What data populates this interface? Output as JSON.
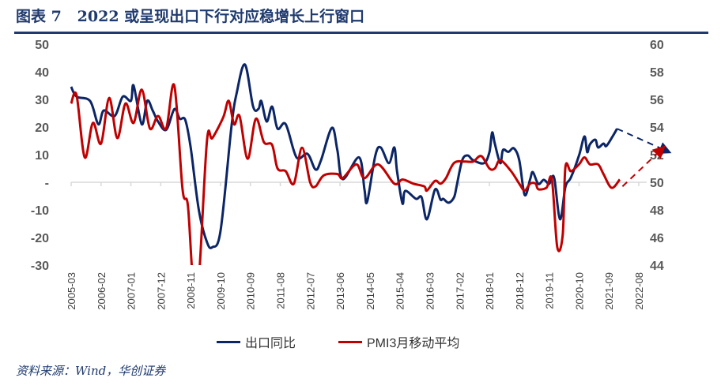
{
  "title": "图表 7   2022 或呈现出口下行对应稳增长上行窗口",
  "source": "资料来源：Wind，华创证券",
  "colors": {
    "export": "#0b2566",
    "pmi": "#c00000",
    "title": "#1f3a6e",
    "axis": "#d9d9d9"
  },
  "chart_data": {
    "type": "line",
    "title": "",
    "x_tick_labels": [
      "2005-03",
      "2006-02",
      "2007-01",
      "2007-12",
      "2008-11",
      "2009-10",
      "2010-09",
      "2011-08",
      "2012-07",
      "2013-06",
      "2014-05",
      "2015-04",
      "2016-03",
      "2017-02",
      "2018-01",
      "2018-12",
      "2019-11",
      "2020-10",
      "2021-09",
      "2022-08"
    ],
    "y_left": {
      "ticks": [
        "50",
        "40",
        "30",
        "20",
        "10",
        "-",
        "-10",
        "-20",
        "-30"
      ],
      "range": [
        -30,
        50
      ]
    },
    "y_right": {
      "ticks": [
        "60",
        "58",
        "56",
        "54",
        "52",
        "50",
        "48",
        "46",
        "44"
      ],
      "range": [
        44,
        60
      ]
    },
    "grid": false,
    "legend_position": "bottom",
    "series": [
      {
        "name": "出口同比",
        "axis": "left",
        "color": "#0b2566",
        "points": [
          [
            "2005-03",
            34.6
          ],
          [
            "2005-05",
            31
          ],
          [
            "2005-10",
            29.4
          ],
          [
            "2006-01",
            21
          ],
          [
            "2006-03",
            26
          ],
          [
            "2006-07",
            24
          ],
          [
            "2006-10",
            31
          ],
          [
            "2007-01",
            29.5
          ],
          [
            "2007-02",
            35
          ],
          [
            "2007-05",
            21
          ],
          [
            "2007-07",
            29.5
          ],
          [
            "2007-09",
            26
          ],
          [
            "2007-11",
            22
          ],
          [
            "2008-02",
            19
          ],
          [
            "2008-05",
            26.5
          ],
          [
            "2008-07",
            23
          ],
          [
            "2008-09",
            22.6
          ],
          [
            "2008-11",
            12.6
          ],
          [
            "2009-02",
            -10
          ],
          [
            "2009-05",
            -21.7
          ],
          [
            "2009-07",
            -23.5
          ],
          [
            "2009-10",
            -17.7
          ],
          [
            "2010-02",
            20
          ],
          [
            "2010-04",
            32.6
          ],
          [
            "2010-07",
            42.6
          ],
          [
            "2010-10",
            27.4
          ],
          [
            "2010-12",
            26.6
          ],
          [
            "2011-01",
            29.4
          ],
          [
            "2011-03",
            22
          ],
          [
            "2011-05",
            27.4
          ],
          [
            "2011-07",
            19.4
          ],
          [
            "2011-10",
            21
          ],
          [
            "2012-02",
            9
          ],
          [
            "2012-06",
            10.3
          ],
          [
            "2012-09",
            4.6
          ],
          [
            "2012-11",
            8
          ],
          [
            "2013-03",
            19.7
          ],
          [
            "2013-05",
            11.7
          ],
          [
            "2013-07",
            1.1
          ],
          [
            "2014-01",
            9
          ],
          [
            "2014-03",
            -2.6
          ],
          [
            "2014-04",
            -7
          ],
          [
            "2014-07",
            9.7
          ],
          [
            "2014-09",
            12.6
          ],
          [
            "2014-12",
            6.9
          ],
          [
            "2015-02",
            12.6
          ],
          [
            "2015-03",
            4
          ],
          [
            "2015-05",
            -7.7
          ],
          [
            "2015-06",
            -3.1
          ],
          [
            "2015-10",
            -6
          ],
          [
            "2015-12",
            -5.4
          ],
          [
            "2016-02",
            -13.4
          ],
          [
            "2016-05",
            -2.6
          ],
          [
            "2016-07",
            -6.3
          ],
          [
            "2016-08",
            -6
          ],
          [
            "2016-10",
            -7.4
          ],
          [
            "2016-12",
            -5.4
          ],
          [
            "2017-01",
            -1.1
          ],
          [
            "2017-03",
            8
          ],
          [
            "2017-05",
            9.7
          ],
          [
            "2017-07",
            8
          ],
          [
            "2017-11",
            6.9
          ],
          [
            "2018-01",
            10.9
          ],
          [
            "2018-02",
            18
          ],
          [
            "2018-03",
            14
          ],
          [
            "2018-05",
            6.9
          ],
          [
            "2018-06",
            11.7
          ],
          [
            "2018-08",
            11
          ],
          [
            "2018-10",
            12.3
          ],
          [
            "2018-12",
            8
          ],
          [
            "2019-02",
            -4.6
          ],
          [
            "2019-04",
            1.1
          ],
          [
            "2019-05",
            3.7
          ],
          [
            "2019-07",
            -0.6
          ],
          [
            "2019-09",
            0.9
          ],
          [
            "2019-11",
            -0.6
          ],
          [
            "2019-12",
            1.7
          ],
          [
            "2020-01",
            0.9
          ],
          [
            "2020-03",
            -13.4
          ],
          [
            "2020-05",
            -1.7
          ],
          [
            "2020-07",
            1.7
          ],
          [
            "2020-10",
            9.7
          ],
          [
            "2020-12",
            16.6
          ],
          [
            "2021-01",
            10.9
          ],
          [
            "2021-02",
            13.7
          ],
          [
            "2021-04",
            15.4
          ],
          [
            "2021-05",
            12.6
          ],
          [
            "2021-07",
            14
          ],
          [
            "2021-08",
            13.1
          ],
          [
            "2021-10",
            16
          ],
          [
            "2021-12",
            19.4
          ]
        ],
        "projection": [
          [
            "2021-12",
            19.4
          ],
          [
            "2023-07",
            11
          ]
        ]
      },
      {
        "name": "PMI3月移动平均",
        "axis": "right",
        "color": "#c00000",
        "points": [
          [
            "2005-03",
            55.7
          ],
          [
            "2005-05",
            56.3
          ],
          [
            "2005-08",
            51.8
          ],
          [
            "2005-11",
            54.3
          ],
          [
            "2006-02",
            52.8
          ],
          [
            "2006-05",
            56.1
          ],
          [
            "2006-08",
            53.2
          ],
          [
            "2006-11",
            55.7
          ],
          [
            "2007-02",
            54.3
          ],
          [
            "2007-05",
            56.7
          ],
          [
            "2007-08",
            53.9
          ],
          [
            "2007-11",
            54.8
          ],
          [
            "2008-02",
            53.9
          ],
          [
            "2008-05",
            57
          ],
          [
            "2008-08",
            49.5
          ],
          [
            "2008-10",
            48.3
          ],
          [
            "2008-12",
            42.5
          ],
          [
            "2009-02",
            43
          ],
          [
            "2009-05",
            53
          ],
          [
            "2009-07",
            53.2
          ],
          [
            "2009-11",
            54.7
          ],
          [
            "2010-01",
            55.9
          ],
          [
            "2010-03",
            54.2
          ],
          [
            "2010-05",
            54.8
          ],
          [
            "2010-08",
            51.7
          ],
          [
            "2010-11",
            54.6
          ],
          [
            "2011-02",
            52.9
          ],
          [
            "2011-05",
            52.7
          ],
          [
            "2011-07",
            51
          ],
          [
            "2011-10",
            50.8
          ],
          [
            "2012-01",
            49.9
          ],
          [
            "2012-04",
            52.5
          ],
          [
            "2012-07",
            50
          ],
          [
            "2012-09",
            49.7
          ],
          [
            "2012-12",
            50.5
          ],
          [
            "2013-05",
            50.6
          ],
          [
            "2013-07",
            50.3
          ],
          [
            "2013-12",
            51.3
          ],
          [
            "2014-03",
            50.3
          ],
          [
            "2014-08",
            51.3
          ],
          [
            "2015-02",
            49.9
          ],
          [
            "2015-05",
            50.2
          ],
          [
            "2015-09",
            49.9
          ],
          [
            "2016-01",
            49.7
          ],
          [
            "2016-02",
            49.4
          ],
          [
            "2016-05",
            50.1
          ],
          [
            "2016-07",
            49.9
          ],
          [
            "2016-09",
            50.3
          ],
          [
            "2016-12",
            51.4
          ],
          [
            "2017-04",
            51.5
          ],
          [
            "2017-07",
            51.5
          ],
          [
            "2017-10",
            51.9
          ],
          [
            "2018-01",
            51
          ],
          [
            "2018-03",
            51
          ],
          [
            "2018-05",
            51.6
          ],
          [
            "2018-09",
            50.8
          ],
          [
            "2018-12",
            49.9
          ],
          [
            "2019-02",
            49.4
          ],
          [
            "2019-04",
            49.9
          ],
          [
            "2019-06",
            49.9
          ],
          [
            "2019-07",
            49.5
          ],
          [
            "2019-10",
            49.6
          ],
          [
            "2019-12",
            50.2
          ],
          [
            "2020-02",
            45.3
          ],
          [
            "2020-04",
            46.2
          ],
          [
            "2020-05",
            51.1
          ],
          [
            "2020-07",
            50.8
          ],
          [
            "2020-10",
            51.3
          ],
          [
            "2020-12",
            51.8
          ],
          [
            "2021-02",
            51.3
          ],
          [
            "2021-05",
            51.3
          ],
          [
            "2021-07",
            50.6
          ],
          [
            "2021-10",
            49.6
          ],
          [
            "2022-01",
            50.2
          ]
        ],
        "projection": [
          [
            "2022-02",
            49.7
          ],
          [
            "2023-05",
            52.5
          ]
        ]
      }
    ]
  }
}
